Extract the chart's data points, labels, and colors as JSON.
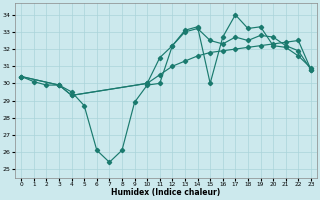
{
  "xlabel": "Humidex (Indice chaleur)",
  "background_color": "#cce9ed",
  "grid_color": "#aad4da",
  "line_color": "#1a7a6e",
  "xlim": [
    -0.5,
    23.5
  ],
  "ylim": [
    24.5,
    34.7
  ],
  "yticks": [
    25,
    26,
    27,
    28,
    29,
    30,
    31,
    32,
    33,
    34
  ],
  "xticks": [
    0,
    1,
    2,
    3,
    4,
    5,
    6,
    7,
    8,
    9,
    10,
    11,
    12,
    13,
    14,
    15,
    16,
    17,
    18,
    19,
    20,
    21,
    22,
    23
  ],
  "line1_x": [
    0,
    1,
    2,
    3,
    4,
    5,
    6,
    7,
    8,
    9,
    10,
    11,
    12,
    13,
    14,
    15,
    16,
    17,
    18,
    19,
    20,
    21,
    22,
    23
  ],
  "line1_y": [
    30.4,
    30.1,
    29.9,
    29.9,
    29.5,
    28.7,
    26.1,
    25.4,
    26.1,
    28.9,
    29.9,
    30.0,
    32.2,
    33.1,
    33.3,
    30.0,
    32.7,
    34.0,
    33.2,
    33.3,
    32.2,
    32.1,
    31.6,
    30.9
  ],
  "line2_x": [
    0,
    3,
    4,
    10,
    11,
    12,
    13,
    14,
    15,
    16,
    17,
    18,
    19,
    20,
    21,
    22,
    23
  ],
  "line2_y": [
    30.4,
    29.9,
    29.3,
    30.0,
    31.5,
    32.2,
    33.0,
    33.2,
    32.5,
    32.3,
    32.7,
    32.5,
    32.8,
    32.7,
    32.2,
    31.9,
    30.8
  ],
  "line3_x": [
    0,
    3,
    4,
    10,
    11,
    12,
    13,
    14,
    15,
    16,
    17,
    18,
    19,
    20,
    21,
    22,
    23
  ],
  "line3_y": [
    30.4,
    29.9,
    29.3,
    30.0,
    30.5,
    31.0,
    31.3,
    31.6,
    31.8,
    31.9,
    32.0,
    32.1,
    32.2,
    32.3,
    32.4,
    32.5,
    30.8
  ]
}
